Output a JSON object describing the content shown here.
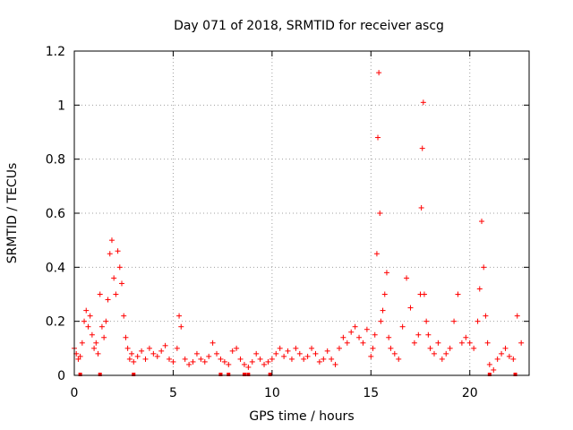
{
  "chart_data": {
    "type": "scatter",
    "title": "Day 071 of 2018, SRMTID for receiver ascg",
    "xlabel": "GPS time / hours",
    "ylabel": "SRMTID / TECUs",
    "xlim": [
      0,
      23
    ],
    "ylim": [
      0,
      1.2
    ],
    "xticks": [
      0,
      5,
      10,
      15,
      20
    ],
    "xtick_labels": [
      "0",
      "5",
      "10",
      "15",
      "20"
    ],
    "yticks": [
      0,
      0.2,
      0.4,
      0.6,
      0.8,
      1.0,
      1.2
    ],
    "ytick_labels": [
      "0",
      "0.2",
      "0.4",
      "0.6",
      "0.8",
      "1",
      "1.2"
    ],
    "grid": true,
    "marker": "+",
    "color": "#ff0000",
    "series": [
      {
        "name": "SRMTID",
        "x": [
          0.0,
          0.1,
          0.2,
          0.3,
          0.4,
          0.5,
          0.6,
          0.7,
          0.8,
          0.9,
          1.0,
          1.1,
          1.2,
          1.3,
          1.4,
          1.5,
          1.6,
          1.7,
          1.8,
          1.9,
          2.0,
          2.1,
          2.2,
          2.3,
          2.4,
          2.5,
          2.6,
          2.7,
          2.8,
          2.9,
          3.0,
          3.2,
          3.4,
          3.6,
          3.8,
          4.0,
          4.2,
          4.4,
          4.6,
          4.8,
          5.0,
          5.2,
          5.3,
          5.4,
          5.6,
          5.8,
          6.0,
          6.2,
          6.4,
          6.6,
          6.8,
          7.0,
          7.2,
          7.4,
          7.6,
          7.8,
          8.0,
          8.2,
          8.4,
          8.6,
          8.8,
          9.0,
          9.2,
          9.4,
          9.6,
          9.8,
          10.0,
          10.2,
          10.4,
          10.6,
          10.8,
          11.0,
          11.2,
          11.4,
          11.6,
          11.8,
          12.0,
          12.2,
          12.4,
          12.6,
          12.8,
          13.0,
          13.2,
          13.4,
          13.6,
          13.8,
          14.0,
          14.2,
          14.4,
          14.6,
          14.8,
          15.0,
          15.1,
          15.2,
          15.3,
          15.35,
          15.4,
          15.45,
          15.5,
          15.6,
          15.7,
          15.8,
          15.9,
          16.0,
          16.2,
          16.4,
          16.6,
          16.8,
          17.0,
          17.2,
          17.4,
          17.5,
          17.55,
          17.6,
          17.65,
          17.7,
          17.8,
          17.9,
          18.0,
          18.2,
          18.4,
          18.6,
          18.8,
          19.0,
          19.2,
          19.4,
          19.6,
          19.8,
          20.0,
          20.2,
          20.4,
          20.5,
          20.6,
          20.7,
          20.8,
          20.9,
          21.0,
          21.2,
          21.4,
          21.6,
          21.8,
          22.0,
          22.2,
          22.4,
          22.6
        ],
        "y": [
          0.1,
          0.08,
          0.06,
          0.07,
          0.12,
          0.2,
          0.24,
          0.18,
          0.22,
          0.15,
          0.1,
          0.12,
          0.08,
          0.3,
          0.18,
          0.14,
          0.2,
          0.28,
          0.45,
          0.5,
          0.36,
          0.3,
          0.46,
          0.4,
          0.34,
          0.22,
          0.14,
          0.1,
          0.06,
          0.08,
          0.05,
          0.07,
          0.09,
          0.06,
          0.1,
          0.08,
          0.07,
          0.09,
          0.11,
          0.06,
          0.05,
          0.1,
          0.22,
          0.18,
          0.06,
          0.04,
          0.05,
          0.08,
          0.06,
          0.05,
          0.07,
          0.12,
          0.08,
          0.06,
          0.05,
          0.04,
          0.09,
          0.1,
          0.06,
          0.04,
          0.03,
          0.05,
          0.08,
          0.06,
          0.04,
          0.05,
          0.06,
          0.08,
          0.1,
          0.07,
          0.09,
          0.06,
          0.1,
          0.08,
          0.06,
          0.07,
          0.1,
          0.08,
          0.05,
          0.06,
          0.09,
          0.06,
          0.04,
          0.1,
          0.14,
          0.12,
          0.16,
          0.18,
          0.14,
          0.12,
          0.17,
          0.07,
          0.1,
          0.15,
          0.45,
          0.88,
          1.12,
          0.6,
          0.2,
          0.24,
          0.3,
          0.38,
          0.14,
          0.1,
          0.08,
          0.06,
          0.18,
          0.36,
          0.25,
          0.12,
          0.15,
          0.3,
          0.62,
          0.84,
          1.01,
          0.3,
          0.2,
          0.15,
          0.1,
          0.08,
          0.12,
          0.06,
          0.08,
          0.1,
          0.2,
          0.3,
          0.12,
          0.14,
          0.12,
          0.1,
          0.2,
          0.32,
          0.57,
          0.4,
          0.22,
          0.12,
          0.04,
          0.02,
          0.06,
          0.08,
          0.1,
          0.07,
          0.06,
          0.22,
          0.12
        ],
        "y_min_zero_markers_x": [
          0.3,
          1.3,
          3.0,
          7.4,
          7.8,
          8.6,
          8.8,
          9.9,
          21.0,
          22.3
        ]
      }
    ]
  }
}
